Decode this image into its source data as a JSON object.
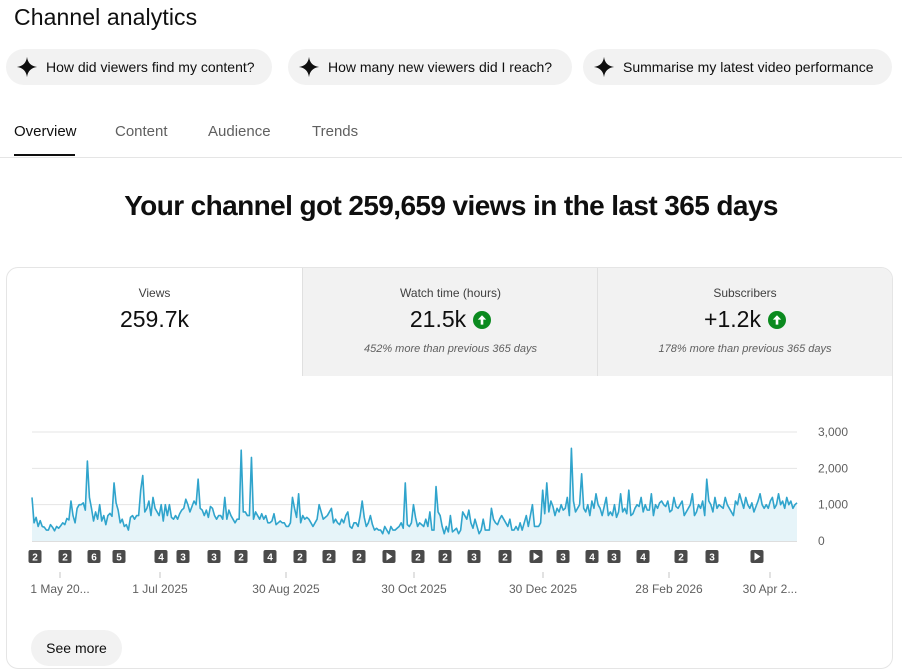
{
  "header": {
    "title": "Channel analytics"
  },
  "suggestions": [
    {
      "label": "How did viewers find my content?"
    },
    {
      "label": "How many new viewers did I reach?"
    },
    {
      "label": "Summarise my latest video performance"
    }
  ],
  "tabs": [
    {
      "label": "Overview",
      "active": true
    },
    {
      "label": "Content"
    },
    {
      "label": "Audience"
    },
    {
      "label": "Trends"
    }
  ],
  "headline": "Your channel got 259,659 views in the last 365 days",
  "metrics": [
    {
      "label": "Views",
      "value": "259.7k",
      "selected": true
    },
    {
      "label": "Watch time (hours)",
      "value": "21.5k",
      "trend": "up",
      "sub": "452% more than previous 365 days"
    },
    {
      "label": "Subscribers",
      "value": "+1.2k",
      "trend": "up",
      "sub": "178% more than previous 365 days"
    }
  ],
  "see_more_label": "See more",
  "colors": {
    "line": "#30a4cc",
    "fill": "#e6f4f9",
    "up": "#0b8a1f",
    "marker": "#4a4a4a"
  },
  "chart_data": {
    "type": "area",
    "ylim": [
      0,
      3000
    ],
    "yticks": [
      "3,000",
      "2,000",
      "1,000",
      "0"
    ],
    "xtick_labels": [
      "1 May 20...",
      "1 Jul 2025",
      "30 Aug 2025",
      "30 Oct 2025",
      "30 Dec 2025",
      "28 Feb 2026",
      "30 Apr 2..."
    ],
    "markers": [
      "2",
      "2",
      "6",
      "5",
      "4",
      "3",
      "3",
      "2",
      "4",
      "2",
      "2",
      "2",
      "play",
      "2",
      "2",
      "3",
      "2",
      "play",
      "3",
      "4",
      "3",
      "4",
      "2",
      "3",
      "play"
    ],
    "series": [
      {
        "values": [
          1200,
          500,
          650,
          400,
          560,
          400,
          380,
          300,
          300,
          450,
          380,
          280,
          400,
          350,
          420,
          500,
          450,
          620,
          580,
          1100,
          700,
          500,
          900,
          1000,
          1000,
          1050,
          850,
          2200,
          1200,
          900,
          550,
          800,
          600,
          1000,
          550,
          700,
          450,
          700,
          760,
          680,
          1600,
          1050,
          850,
          500,
          600,
          400,
          450,
          300,
          650,
          700,
          600,
          700,
          700,
          1400,
          1800,
          800,
          900,
          1100,
          700,
          1200,
          900,
          800,
          700,
          1000,
          550,
          1000,
          700,
          1000,
          650,
          600,
          700,
          600,
          750,
          850,
          900,
          1150,
          1000,
          800,
          950,
          1100,
          1000,
          1700,
          900,
          850,
          700,
          850,
          650,
          950,
          900,
          700,
          600,
          700,
          700,
          600,
          1200,
          600,
          850,
          700,
          600,
          500,
          600,
          600,
          2500,
          800,
          800,
          700,
          700,
          2300,
          600,
          800,
          700,
          600,
          750,
          600,
          700,
          500,
          500,
          550,
          750,
          450,
          500,
          550,
          500,
          500,
          400,
          400,
          500,
          1200,
          900,
          650,
          1300,
          500,
          700,
          600,
          650,
          600,
          500,
          400,
          500,
          600,
          1000,
          800,
          600,
          650,
          700,
          800,
          900,
          500,
          600,
          500,
          450,
          600,
          500,
          700,
          800,
          400,
          350,
          500,
          500,
          400,
          700,
          1100,
          650,
          400,
          500,
          700,
          450,
          300,
          350,
          300,
          300,
          200,
          400,
          300,
          200,
          400,
          300,
          300,
          350,
          400,
          500,
          350,
          1600,
          450,
          400,
          500,
          1000,
          650,
          400,
          500,
          450,
          400,
          600,
          400,
          800,
          300,
          300,
          1500,
          800,
          700,
          400,
          200,
          400,
          250,
          700,
          250,
          300,
          350,
          200,
          300,
          800,
          700,
          600,
          850,
          500,
          350,
          600,
          400,
          200,
          300,
          600,
          300,
          300,
          300,
          900,
          600,
          500,
          450,
          600,
          700,
          600,
          500,
          400,
          600,
          300,
          300,
          400,
          300,
          500,
          300,
          500,
          700,
          400,
          700,
          1000,
          400,
          400,
          400,
          500,
          1400,
          750,
          1600,
          800,
          1100,
          950,
          700,
          900,
          800,
          1000,
          850,
          900,
          1200,
          700,
          2550,
          1100,
          800,
          900,
          1000,
          1850,
          900,
          800,
          1000,
          700,
          1100,
          900,
          1300,
          1000,
          900,
          700,
          950,
          1200,
          700,
          800,
          700,
          1000,
          650,
          800,
          1300,
          800,
          900,
          750,
          1400,
          700,
          750,
          900,
          1000,
          950,
          1200,
          800,
          1000,
          850,
          850,
          1300,
          700,
          1000,
          900,
          1050,
          1100,
          1000,
          950,
          1100,
          800,
          850,
          1200,
          950,
          900,
          1000,
          1100,
          700,
          800,
          900,
          1000,
          1300,
          700,
          800,
          1000,
          900,
          1100,
          700,
          1700,
          1100,
          1000,
          800,
          1200,
          900,
          1000,
          950,
          900,
          1200,
          1000,
          900,
          800,
          700,
          1100,
          1000,
          1300,
          1100,
          900,
          1200,
          1000,
          900,
          1050,
          800,
          950,
          1100,
          1300,
          1000,
          900,
          1000,
          900,
          1100,
          1200,
          900,
          1000,
          1300,
          1000,
          1100,
          900,
          1200,
          1000,
          1100,
          900,
          1000,
          1050
        ]
      }
    ]
  }
}
